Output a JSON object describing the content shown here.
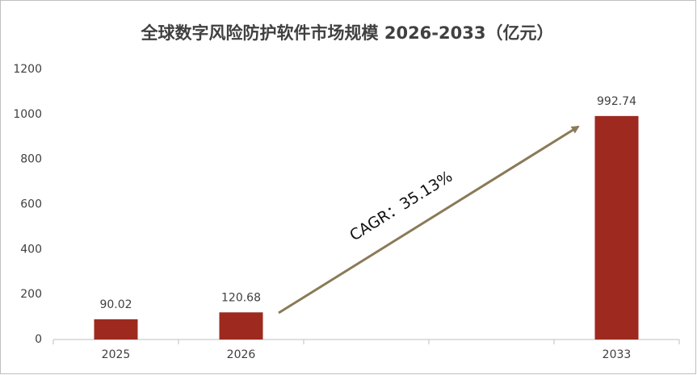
{
  "chart_data": {
    "type": "bar",
    "title": "全球数字风险防护软件市场规模 2026-2033（亿元）",
    "categories": [
      "2025",
      "2026",
      null,
      null,
      "2033"
    ],
    "values": [
      90.02,
      120.68,
      null,
      null,
      992.74
    ],
    "color": "#9e2a1f",
    "ylim": [
      0,
      1200
    ],
    "yticks": [
      0,
      200,
      400,
      600,
      800,
      1000,
      1200
    ],
    "grid": false,
    "annotation": "CAGR：35.13%"
  }
}
